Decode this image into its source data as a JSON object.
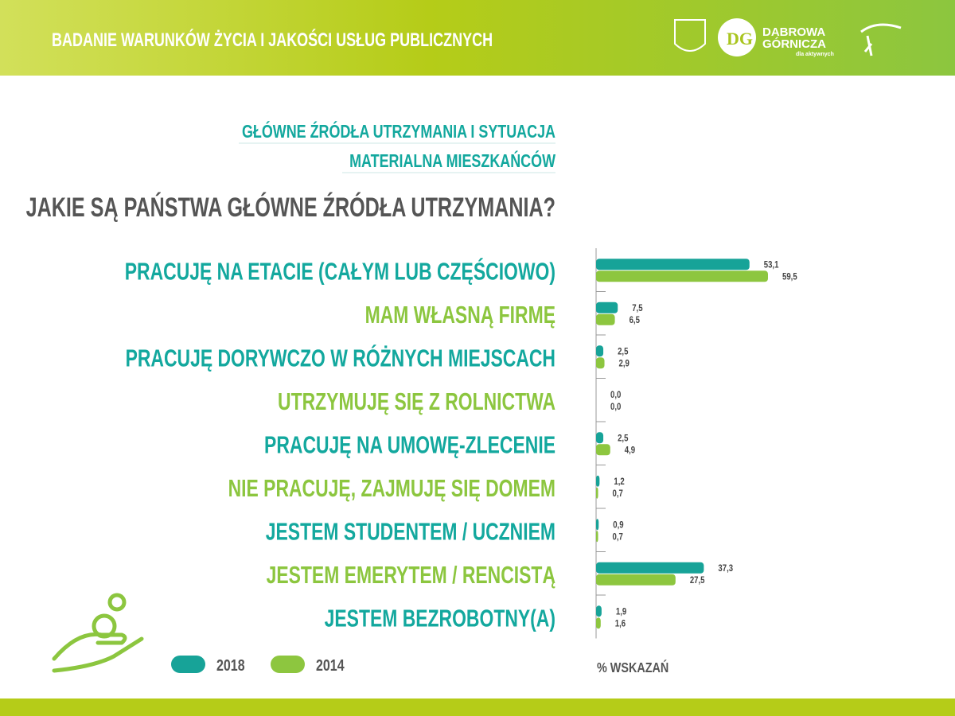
{
  "header": {
    "title": "BADANIE WARUNKÓW ŻYCIA I JAKOŚCI USŁUG PUBLICZNYCH",
    "logo_name_1": "DABROWA",
    "logo_name_2": "GÓRNICZA",
    "logo_tagline": "dla aktywnych"
  },
  "chart_data": {
    "type": "hbar",
    "section_title": [
      "GŁÓWNE ŹRÓDŁA UTRZYMANIA I SYTUACJA",
      "MATERIALNA MIESZKAŃCÓW"
    ],
    "title": "JAKIE SĄ PAŃSTWA GŁÓWNE ŹRÓDŁA UTRZYMANIA?",
    "unit_label": "% WSKAZAŃ",
    "categories": [
      "PRACUJĘ NA ETACIE (CAŁYM LUB CZĘŚCIOWO)",
      "MAM WŁASNĄ FIRMĘ",
      "PRACUJĘ DORYWCZO W RÓŻNYCH MIEJSCACH",
      "UTRZYMUJĘ SIĘ Z ROLNICTWA",
      "PRACUJĘ NA UMOWĘ-ZLECENIE",
      "NIE PRACUJĘ, ZAJMUJĘ SIĘ DOMEM",
      "JESTEM STUDENTEM / UCZNIEM",
      "JESTEM EMERYTEM / RENCISTĄ",
      "JESTEM BEZROBOTNY(A)"
    ],
    "category_colors": [
      "#13a89e",
      "#8cc63f",
      "#13a89e",
      "#8cc63f",
      "#13a89e",
      "#8cc63f",
      "#13a89e",
      "#8cc63f",
      "#13a89e"
    ],
    "series": [
      {
        "name": "2018",
        "color": "#17a398",
        "values": [
          53.1,
          7.5,
          2.5,
          0.0,
          2.5,
          1.2,
          0.9,
          37.3,
          1.9
        ],
        "value_labels": [
          "53,1",
          "7,5",
          "2,5",
          "0,0",
          "2,5",
          "1,2",
          "0,9",
          "37,3",
          "1,9"
        ]
      },
      {
        "name": "2014",
        "color": "#8dc63f",
        "values": [
          59.5,
          6.5,
          2.9,
          0.0,
          4.9,
          0.7,
          0.7,
          27.5,
          1.6
        ],
        "value_labels": [
          "59,5",
          "6,5",
          "2,9",
          "0,0",
          "4,9",
          "0,7",
          "0,7",
          "27,5",
          "1,6"
        ]
      }
    ]
  }
}
